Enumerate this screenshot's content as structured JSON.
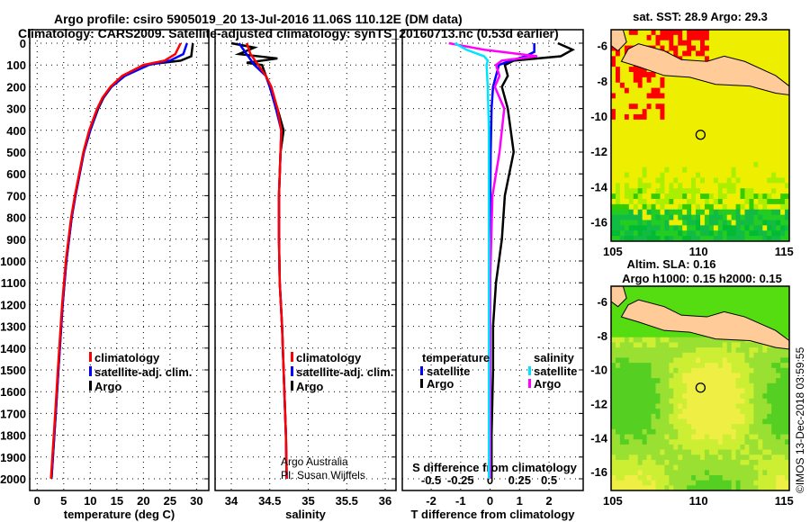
{
  "title": "Argo profile: csiro 5905019_20 13-Jul-2016 11.06S 110.12E (DM data)",
  "subtitle": "Climatology: CARS2009. Satellite-adjusted climatology: synTS_20160713.nc (0.53d earlier)",
  "chart_data": [
    {
      "type": "line",
      "name": "temperature",
      "xlabel": "temperature (deg C)",
      "xlim": [
        -1.4,
        32.3
      ],
      "xticks": [
        0,
        5,
        10,
        15,
        20,
        25,
        30
      ],
      "ylim": [
        2055,
        -60
      ],
      "yticks": [
        0,
        100,
        200,
        300,
        400,
        500,
        600,
        700,
        800,
        900,
        1000,
        1100,
        1200,
        1300,
        1400,
        1500,
        1600,
        1700,
        1800,
        1900,
        2000
      ],
      "legend": [
        "climatology",
        "satellite-adj. clim.",
        "Argo"
      ],
      "series": [
        {
          "name": "Argo",
          "color": "#000000",
          "depth": [
            0,
            60,
            80,
            100,
            150,
            200,
            250,
            300,
            400,
            500,
            600,
            700,
            800,
            1000,
            1200,
            1500,
            1700,
            2000
          ],
          "values": [
            29.3,
            29.0,
            27,
            20,
            16.5,
            14,
            12.5,
            11.5,
            10,
            8.8,
            8,
            7.2,
            6.5,
            5.5,
            4.8,
            4,
            3.5,
            2.7
          ]
        },
        {
          "name": "satellite-adj. clim.",
          "color": "#0000ff",
          "depth": [
            0,
            50,
            80,
            100,
            150,
            200,
            250,
            300,
            400,
            500,
            600,
            700,
            800,
            1000,
            1200,
            1500,
            1700,
            2000
          ],
          "values": [
            28.2,
            27.5,
            25,
            21,
            16.5,
            14,
            12.4,
            11.4,
            10,
            8.8,
            8,
            7.2,
            6.5,
            5.5,
            4.8,
            4,
            3.5,
            2.7
          ]
        },
        {
          "name": "climatology",
          "color": "#ff0000",
          "depth": [
            0,
            50,
            80,
            100,
            150,
            200,
            250,
            300,
            400,
            500,
            600,
            700,
            800,
            1000,
            1200,
            1500,
            1700,
            2000
          ],
          "values": [
            27,
            26,
            24,
            20,
            16,
            13.8,
            12.3,
            11.3,
            9.8,
            8.7,
            7.9,
            7.1,
            6.4,
            5.4,
            4.7,
            3.9,
            3.4,
            2.6
          ]
        }
      ]
    },
    {
      "type": "line",
      "name": "salinity",
      "xlabel": "salinity",
      "xlim": [
        33.79,
        36.14
      ],
      "xticks": [
        34,
        34.5,
        35,
        35.5,
        36
      ],
      "legend": [
        "climatology",
        "satellite-adj. clim.",
        "Argo"
      ],
      "annotation": [
        "Argo Australia",
        "PI: Susan Wijffels"
      ],
      "series": [
        {
          "name": "Argo",
          "color": "#000000",
          "depth": [
            0,
            20,
            50,
            70,
            90,
            100,
            150,
            200,
            300,
            400,
            500,
            700,
            900,
            1100,
            1300,
            1500,
            1800,
            2000
          ],
          "values": [
            34.0,
            34.3,
            34.1,
            34.6,
            34.2,
            34.4,
            34.45,
            34.5,
            34.6,
            34.68,
            34.64,
            34.62,
            34.62,
            34.63,
            34.66,
            34.68,
            34.71,
            34.72
          ]
        },
        {
          "name": "satellite-adj. clim.",
          "color": "#0000ff",
          "depth": [
            0,
            50,
            100,
            150,
            200,
            300,
            400,
            500,
            700,
            900,
            1100,
            1300,
            1500,
            1800,
            2000
          ],
          "values": [
            34.1,
            34.2,
            34.3,
            34.45,
            34.5,
            34.58,
            34.65,
            34.64,
            34.62,
            34.62,
            34.63,
            34.66,
            34.68,
            34.71,
            34.72
          ]
        },
        {
          "name": "climatology",
          "color": "#ff0000",
          "depth": [
            0,
            50,
            100,
            150,
            200,
            300,
            400,
            500,
            700,
            900,
            1100,
            1300,
            1500,
            1800,
            2000
          ],
          "values": [
            34.2,
            34.25,
            34.35,
            34.45,
            34.52,
            34.6,
            34.65,
            34.64,
            34.62,
            34.62,
            34.63,
            34.66,
            34.68,
            34.71,
            34.72
          ]
        }
      ]
    },
    {
      "type": "line",
      "name": "difference",
      "xlabel": "T difference from climatology",
      "xlim": [
        -2.98,
        3.16
      ],
      "xticks": [
        -2,
        -1,
        0,
        1,
        2
      ],
      "x2label": "S difference from climatology",
      "x2ticks": [
        -0.5,
        -0.25,
        0,
        0.25,
        0.5
      ],
      "legend_temperature": {
        "title": "temperature",
        "items": [
          "satellite",
          "Argo"
        ]
      },
      "legend_salinity": {
        "title": "salinity",
        "items": [
          "satellite",
          "Argo"
        ]
      },
      "series": [
        {
          "name": "T Argo",
          "color": "#000000",
          "depth": [
            0,
            30,
            60,
            80,
            100,
            150,
            200,
            300,
            400,
            500,
            700,
            900,
            1100,
            1300,
            1500,
            1800,
            2000
          ],
          "values": [
            2.3,
            2.8,
            2.4,
            0.8,
            0.5,
            0.6,
            0.4,
            0.6,
            0.7,
            0.8,
            0.5,
            0.4,
            0.2,
            0.1,
            0.1,
            0.05,
            0.05
          ]
        },
        {
          "name": "T satellite",
          "color": "#0000ff",
          "depth": [
            0,
            40,
            60,
            80,
            100,
            150,
            200,
            300,
            500,
            800,
            1200,
            2000
          ],
          "values": [
            1.5,
            1.5,
            1.2,
            0.7,
            0.3,
            0.2,
            0.1,
            0.05,
            0.02,
            0.0,
            0.0,
            0.0
          ]
        },
        {
          "name": "S Argo",
          "color": "#ff00ff",
          "depth": [
            0,
            30,
            60,
            80,
            100,
            150,
            200,
            300,
            400,
            500,
            700,
            900,
            1100,
            1300,
            1500,
            2000
          ],
          "values": [
            -0.35,
            -0.05,
            0.4,
            0.1,
            0.05,
            0.08,
            0.04,
            0.12,
            0.1,
            0.08,
            0.02,
            0.01,
            0.0,
            0.0,
            0.0,
            0.0
          ]
        },
        {
          "name": "S satellite",
          "color": "#00e5ff",
          "depth": [
            0,
            30,
            60,
            80,
            100,
            200,
            400,
            700,
            1000,
            1500,
            2000
          ],
          "values": [
            -0.3,
            -0.2,
            -0.05,
            -0.02,
            -0.03,
            -0.02,
            -0.01,
            -0.01,
            -0.01,
            -0.01,
            -0.01
          ]
        }
      ]
    },
    {
      "type": "heatmap",
      "name": "sst-map",
      "title": "sat. SST: 28.9 Argo: 29.3",
      "xticks": [
        105,
        110,
        115
      ],
      "yticks": [
        -6,
        -8,
        -10,
        -12,
        -14,
        -16
      ]
    },
    {
      "type": "heatmap",
      "name": "sla-map",
      "title1": "Altim. SLA: 0.16",
      "title2": "Argo h1000: 0.15 h2000: 0.15",
      "xticks": [
        105,
        110,
        115
      ],
      "yticks": [
        -6,
        -8,
        -10,
        -12,
        -14,
        -16
      ]
    }
  ],
  "credit": "©IMOS 13-Dec-2018 03:59:55"
}
